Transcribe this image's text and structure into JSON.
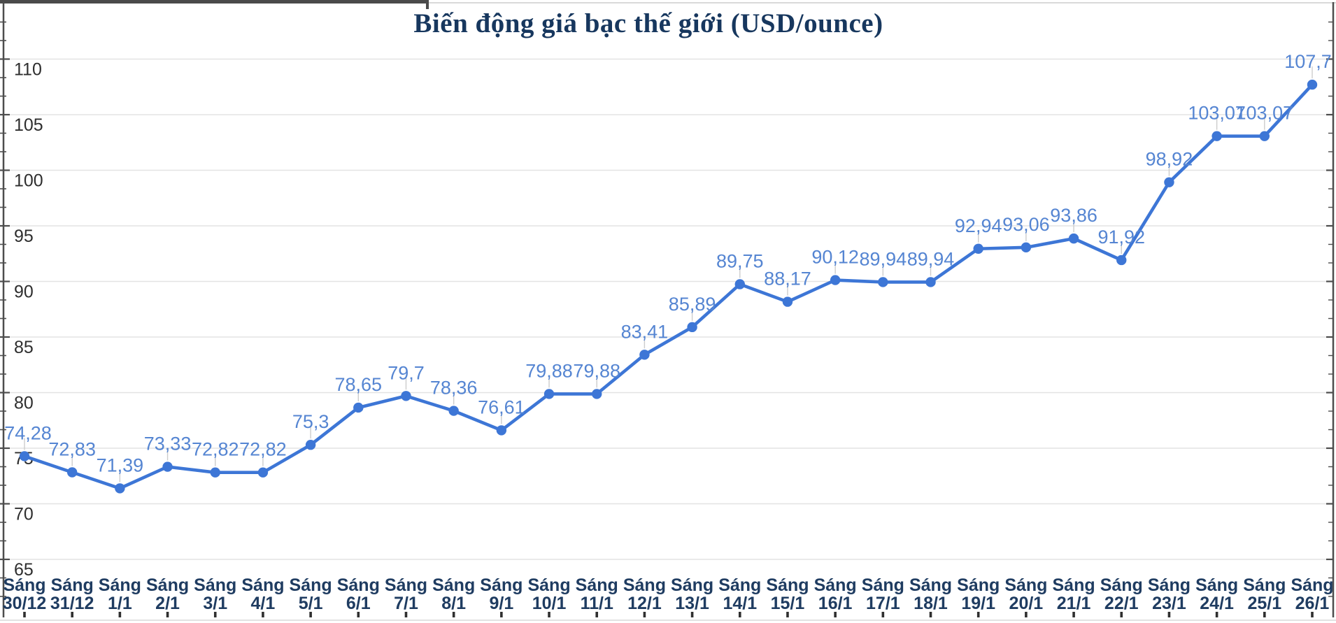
{
  "page": {
    "background": "#ffffff"
  },
  "chart_data": {
    "type": "line",
    "title": "Biến động giá bạc thế giới (USD/ounce)",
    "xlabel": "",
    "ylabel": "",
    "legend": "none",
    "grid": true,
    "ylim": [
      65,
      110
    ],
    "y_ticks": [
      65,
      70,
      75,
      80,
      85,
      90,
      95,
      100,
      105,
      110
    ],
    "categories": [
      "Sáng 30/12",
      "Sáng 31/12",
      "Sáng 1/1",
      "Sáng 2/1",
      "Sáng 3/1",
      "Sáng 4/1",
      "Sáng 5/1",
      "Sáng 6/1",
      "Sáng 7/1",
      "Sáng 8/1",
      "Sáng 9/1",
      "Sáng 10/1",
      "Sáng 11/1",
      "Sáng 12/1",
      "Sáng 13/1",
      "Sáng 14/1",
      "Sáng 15/1",
      "Sáng 16/1",
      "Sáng 17/1",
      "Sáng 18/1",
      "Sáng 19/1",
      "Sáng 20/1",
      "Sáng 21/1",
      "Sáng 22/1",
      "Sáng 23/1",
      "Sáng 24/1",
      "Sáng 25/1",
      "Sáng 26/1"
    ],
    "values": [
      74.28,
      72.83,
      71.39,
      73.33,
      72.82,
      72.82,
      75.3,
      78.65,
      79.7,
      78.36,
      76.61,
      79.88,
      79.88,
      83.41,
      85.89,
      89.75,
      88.17,
      90.12,
      89.94,
      89.94,
      92.94,
      93.06,
      93.86,
      91.92,
      98.92,
      103.07,
      103.07,
      107.7
    ],
    "point_labels": [
      "74,28",
      "72,83",
      "71,39",
      "73,33",
      "72,82",
      "72,82",
      "75,3",
      "78,65",
      "79,7",
      "78,36",
      "76,61",
      "79,88",
      "79,88",
      "83,41",
      "85,89",
      "89,75",
      "88,17",
      "90,12",
      "89,94",
      "89,94",
      "92,94",
      "93,06",
      "93,86",
      "91,92",
      "98,92",
      "103,07",
      "103,07",
      "107,7"
    ],
    "colors": {
      "line": "#3d76d6",
      "marker": "#3d76d6",
      "point_label": "#5585d2",
      "title": "#17375e",
      "xtick": "#1f3c61",
      "ytick": "#2e2e2e",
      "grid": "#e3e3e3",
      "axis": "#4d4d4d",
      "stem": "#cccccc",
      "frame_light": "#d9d9d9",
      "top_bar_dark": "#4a4a4a"
    }
  }
}
